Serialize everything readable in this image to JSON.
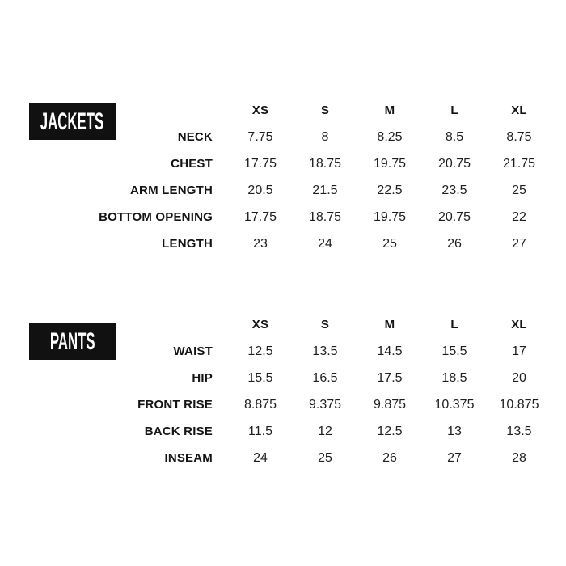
{
  "colors": {
    "page_background": "#ffffff",
    "box_background": "#111111",
    "box_text": "#ffffff",
    "label_text": "#141414",
    "value_text": "#1e1e1e"
  },
  "size_headers": [
    "XS",
    "S",
    "M",
    "L",
    "XL"
  ],
  "sections": [
    {
      "title": "JACKETS",
      "rows": [
        {
          "label": "NECK",
          "values": [
            "7.75",
            "8",
            "8.25",
            "8.5",
            "8.75"
          ]
        },
        {
          "label": "CHEST",
          "values": [
            "17.75",
            "18.75",
            "19.75",
            "20.75",
            "21.75"
          ]
        },
        {
          "label": "ARM LENGTH",
          "values": [
            "20.5",
            "21.5",
            "22.5",
            "23.5",
            "25"
          ]
        },
        {
          "label": "BOTTOM OPENING",
          "values": [
            "17.75",
            "18.75",
            "19.75",
            "20.75",
            "22"
          ]
        },
        {
          "label": "LENGTH",
          "values": [
            "23",
            "24",
            "25",
            "26",
            "27"
          ]
        }
      ]
    },
    {
      "title": "PANTS",
      "rows": [
        {
          "label": "WAIST",
          "values": [
            "12.5",
            "13.5",
            "14.5",
            "15.5",
            "17"
          ]
        },
        {
          "label": "HIP",
          "values": [
            "15.5",
            "16.5",
            "17.5",
            "18.5",
            "20"
          ]
        },
        {
          "label": "FRONT RISE",
          "values": [
            "8.875",
            "9.375",
            "9.875",
            "10.375",
            "10.875"
          ]
        },
        {
          "label": "BACK RISE",
          "values": [
            "11.5",
            "12",
            "12.5",
            "13",
            "13.5"
          ]
        },
        {
          "label": "INSEAM",
          "values": [
            "24",
            "25",
            "26",
            "27",
            "28"
          ]
        }
      ]
    }
  ]
}
